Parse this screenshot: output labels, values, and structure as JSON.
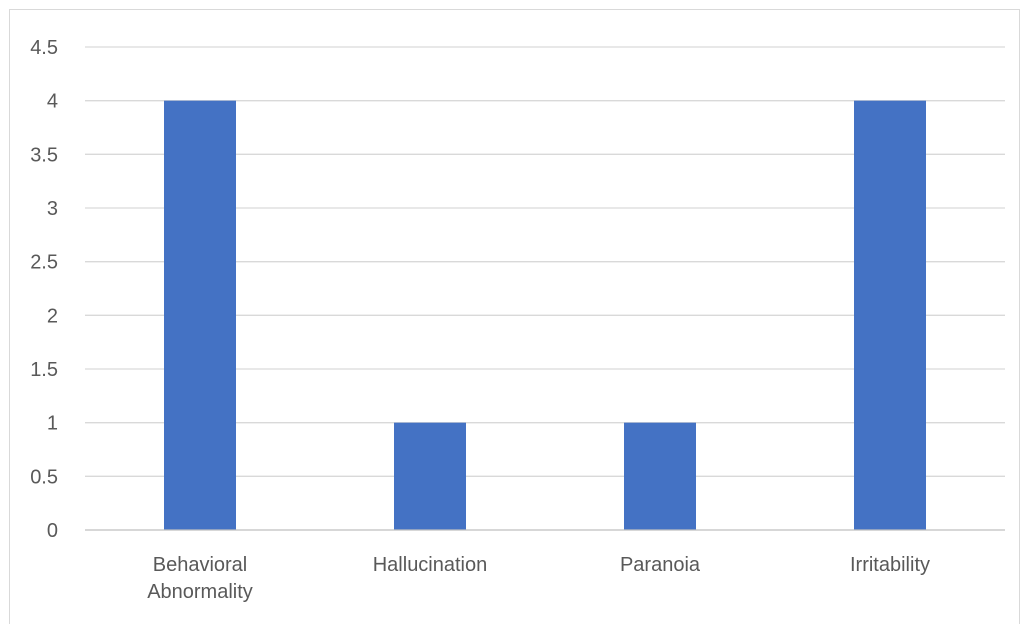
{
  "chart_data": {
    "type": "bar",
    "categories": [
      [
        "Behavioral",
        "Abnormality"
      ],
      [
        "Hallucination"
      ],
      [
        "Paranoia"
      ],
      [
        "Irritability"
      ]
    ],
    "values": [
      4,
      1,
      1,
      4
    ],
    "ylim": [
      0,
      4.5
    ],
    "yticks": [
      "0",
      "0.5",
      "1",
      "1.5",
      "2",
      "2.5",
      "3",
      "3.5",
      "4",
      "4.5"
    ],
    "grid": true,
    "legend": "none",
    "title": "",
    "xlabel": "",
    "ylabel": "",
    "colors": {
      "bar": "#4472c4",
      "grid": "#d9d9d9",
      "axis": "#bfbfbf",
      "text": "#595959"
    }
  }
}
